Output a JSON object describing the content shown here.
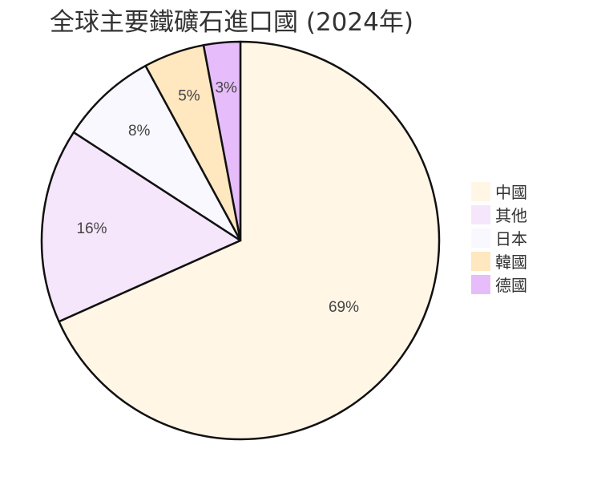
{
  "chart_data": {
    "type": "pie",
    "title": "全球主要鐵礦石進口國 (2024年)",
    "slices": [
      {
        "label": "中國",
        "value": 69,
        "display": "69%",
        "color": "#fff6e6"
      },
      {
        "label": "其他",
        "value": 16,
        "display": "16%",
        "color": "#f5e6fb"
      },
      {
        "label": "日本",
        "value": 8,
        "display": "8%",
        "color": "#f8f8fe"
      },
      {
        "label": "韓國",
        "value": 5,
        "display": "5%",
        "color": "#ffe7c0"
      },
      {
        "label": "德國",
        "value": 3,
        "display": "3%",
        "color": "#e6bdfa"
      }
    ],
    "legend": {
      "position": "right",
      "items": [
        {
          "label": "中國",
          "color": "#fff6e6"
        },
        {
          "label": "其他",
          "color": "#f5e6fb"
        },
        {
          "label": "日本",
          "color": "#f8f8fe"
        },
        {
          "label": "韓國",
          "color": "#ffe7c0"
        },
        {
          "label": "德國",
          "color": "#e6bdfa"
        }
      ]
    },
    "stroke_color": "#111111",
    "start_angle": "12 o'clock",
    "direction": "clockwise"
  }
}
